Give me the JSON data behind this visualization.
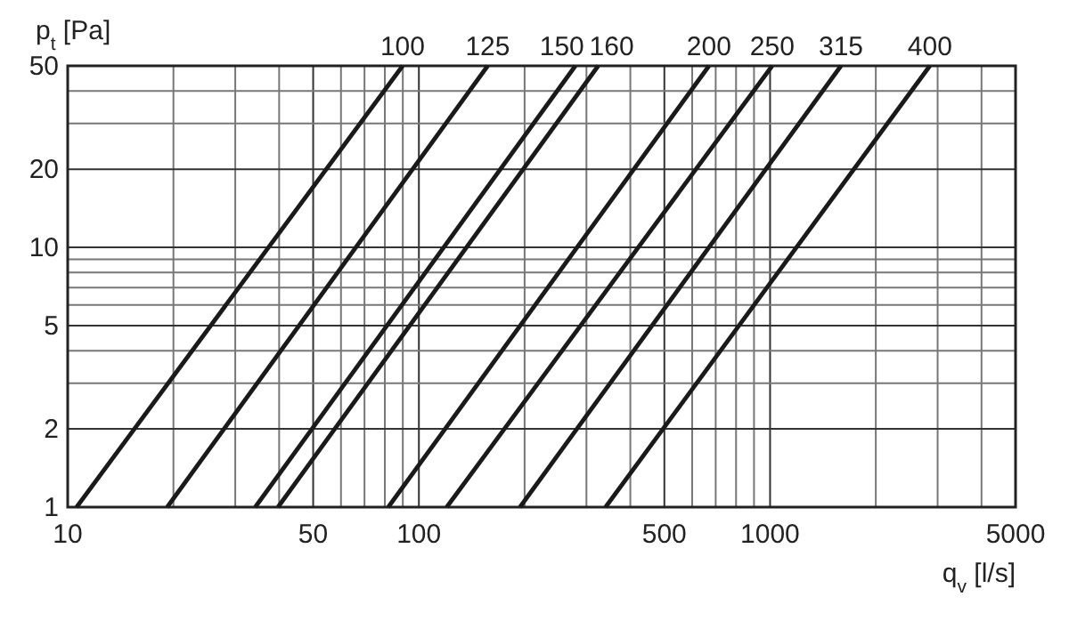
{
  "chart_data": {
    "type": "line",
    "xlabel": "q$_{v}$ [l/s]",
    "ylabel": "p$_{t}$ [Pa]",
    "log": "xy",
    "grid": true,
    "marker": "none",
    "line_style": "solid",
    "xlim": [
      10,
      5000
    ],
    "ylim": [
      1,
      50
    ],
    "xticks": [
      10,
      {
        "value": 20,
        "label": null
      },
      {
        "value": 30,
        "label": null
      },
      {
        "value": 40,
        "label": null
      },
      50,
      {
        "value": 60,
        "label": null
      },
      {
        "value": 70,
        "label": null
      },
      {
        "value": 80,
        "label": null
      },
      {
        "value": 90,
        "label": null
      },
      100,
      {
        "value": 200,
        "label": null
      },
      {
        "value": 300,
        "label": null
      },
      {
        "value": 400,
        "label": null
      },
      500,
      {
        "value": 600,
        "label": null
      },
      {
        "value": 700,
        "label": null
      },
      {
        "value": 800,
        "label": null
      },
      {
        "value": 900,
        "label": null
      },
      1000,
      {
        "value": 2000,
        "label": null
      },
      {
        "value": 3000,
        "label": null
      },
      {
        "value": 4000,
        "label": null
      },
      5000
    ],
    "yticks": [
      1,
      2,
      {
        "value": 3,
        "label": null
      },
      {
        "value": 4,
        "label": null
      },
      5,
      {
        "value": 6,
        "label": null
      },
      {
        "value": 7,
        "label": null
      },
      {
        "value": 8,
        "label": null
      },
      {
        "value": 9,
        "label": null
      },
      10,
      20,
      {
        "value": 30,
        "label": null
      },
      {
        "value": 40,
        "label": null
      },
      50
    ],
    "series": [
      {
        "name": "100",
        "color": "#1a1a1a",
        "x": [
          10.6,
          89.9
        ],
        "values": [
          1,
          50
        ]
      },
      {
        "name": "125",
        "color": "#1a1a1a",
        "x": [
          19.2,
          157
        ],
        "values": [
          1,
          50
        ]
      },
      {
        "name": "150",
        "color": "#1a1a1a",
        "x": [
          34.2,
          279
        ],
        "values": [
          1,
          50
        ]
      },
      {
        "name": "160",
        "color": "#1a1a1a",
        "x": [
          39.7,
          324
        ],
        "values": [
          1,
          50
        ]
      },
      {
        "name": "200",
        "color": "#1a1a1a",
        "x": [
          81.8,
          670
        ],
        "values": [
          1,
          50
        ]
      },
      {
        "name": "250",
        "color": "#1a1a1a",
        "x": [
          120,
          1014
        ],
        "values": [
          1,
          50
        ]
      },
      {
        "name": "315",
        "color": "#1a1a1a",
        "x": [
          194,
          1592
        ],
        "values": [
          1,
          50
        ]
      },
      {
        "name": "400",
        "color": "#1a1a1a",
        "x": [
          340,
          2851
        ],
        "values": [
          1,
          50
        ]
      }
    ]
  }
}
